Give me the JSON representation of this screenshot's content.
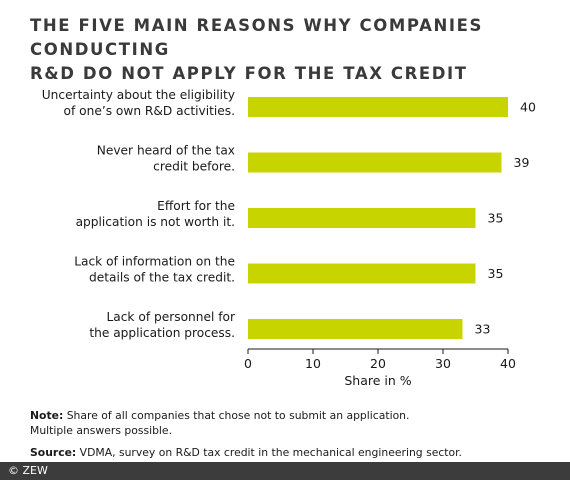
{
  "chart_data": {
    "type": "bar",
    "orientation": "horizontal",
    "title_lines": [
      "THE FIVE MAIN REASONS WHY COMPANIES CONDUCTING",
      "R&D DO NOT APPLY FOR THE TAX CREDIT"
    ],
    "categories": [
      [
        "Uncertainty about the eligibility",
        "of one’s own R&D activities."
      ],
      [
        "Never heard of the tax",
        "credit before."
      ],
      [
        "Effort for the",
        "application is not worth it."
      ],
      [
        "Lack of information on the",
        "details of the tax credit."
      ],
      [
        "Lack of personnel for",
        "the application process."
      ]
    ],
    "values": [
      40,
      39,
      35,
      35,
      33
    ],
    "xlabel": "Share in %",
    "xlim": [
      0,
      40
    ],
    "xticks": [
      "0",
      "10",
      "20",
      "30",
      "40"
    ],
    "bar_color": "#c8d400",
    "grid": false
  },
  "notes": {
    "note_label": "Note:",
    "note_line1": " Share of all companies that chose not to submit an application.",
    "note_line2": "Multiple answers possible.",
    "source_label": "Source:",
    "source_text": " VDMA, survey on R&D tax credit in the mechanical engineering sector."
  },
  "footer": {
    "copyright": "© ZEW"
  }
}
